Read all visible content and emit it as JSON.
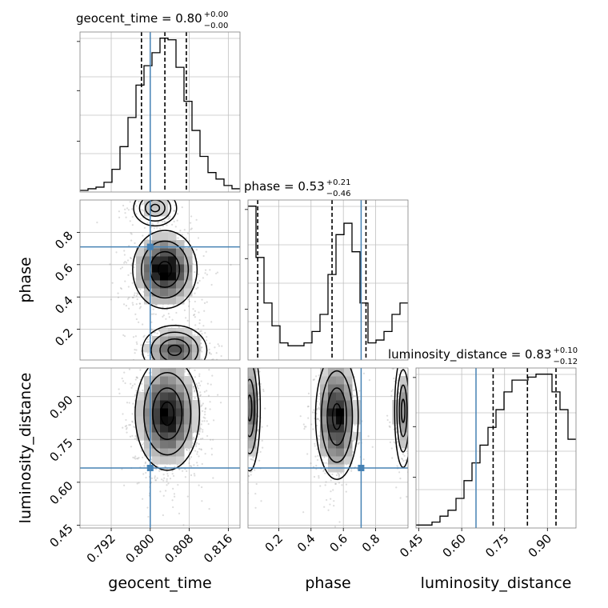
{
  "chart_data": {
    "type": "corner",
    "colors": {
      "truth": "#4682b4",
      "hist": "#000000",
      "grid": "#c0c0c0",
      "scatter": "#8c8c8c"
    },
    "parameters": [
      "geocent_time",
      "phase",
      "luminosity_distance"
    ],
    "titles": {
      "geocent_time": {
        "name": "geocent_time",
        "median": "0.80",
        "plus": "+0.00",
        "minus": "−0.00"
      },
      "phase": {
        "name": "phase",
        "median": "0.53",
        "plus": "+0.21",
        "minus": "−0.46"
      },
      "luminosity_distance": {
        "name": "luminosity_distance",
        "median": "0.83",
        "plus": "+0.10",
        "minus": "−0.12"
      }
    },
    "axes": {
      "geocent_time": {
        "label": "geocent_time",
        "range": [
          0.7856,
          0.8184
        ],
        "ticks": [
          0.792,
          0.8,
          0.808,
          0.816
        ],
        "tick_labels": [
          "0.792",
          "0.800",
          "0.808",
          "0.816"
        ]
      },
      "phase": {
        "label": "phase",
        "range": [
          0.01,
          1.0
        ],
        "ticks": [
          0.2,
          0.4,
          0.6,
          0.8
        ],
        "tick_labels": [
          "0.2",
          "0.4",
          "0.6",
          "0.8"
        ]
      },
      "luminosity_distance": {
        "label": "luminosity_distance",
        "range": [
          0.44,
          1.0
        ],
        "ticks": [
          0.45,
          0.6,
          0.75,
          0.9
        ],
        "tick_labels": [
          "0.45",
          "0.60",
          "0.75",
          "0.90"
        ]
      }
    },
    "truths": {
      "geocent_time": 0.8,
      "phase": 0.71,
      "luminosity_distance": 0.65
    },
    "quantiles": {
      "geocent_time": [
        0.7982,
        0.803,
        0.8074
      ],
      "phase": [
        0.07,
        0.53,
        0.74
      ],
      "luminosity_distance": [
        0.71,
        0.83,
        0.93
      ]
    },
    "histograms": {
      "geocent_time": {
        "edges_start": 0.7856,
        "bin_width": 0.00164,
        "counts": [
          1,
          2,
          3,
          6,
          14,
          28,
          46,
          66,
          78,
          86,
          95,
          94,
          77,
          56,
          38,
          22,
          12,
          8,
          4,
          2
        ]
      },
      "phase": {
        "edges_start": 0.01,
        "bin_width": 0.0495,
        "counts": [
          54,
          36,
          20,
          12,
          6,
          5,
          5,
          6,
          10,
          16,
          30,
          44,
          48,
          38,
          20,
          6,
          7,
          10,
          16,
          20
        ]
      },
      "luminosity_distance": {
        "edges_start": 0.44,
        "bin_width": 0.028,
        "counts": [
          1,
          1,
          2,
          4,
          6,
          10,
          16,
          22,
          28,
          34,
          40,
          46,
          50,
          50,
          51,
          52,
          52,
          46,
          40,
          30
        ]
      }
    },
    "grid": true,
    "legend": "none"
  }
}
